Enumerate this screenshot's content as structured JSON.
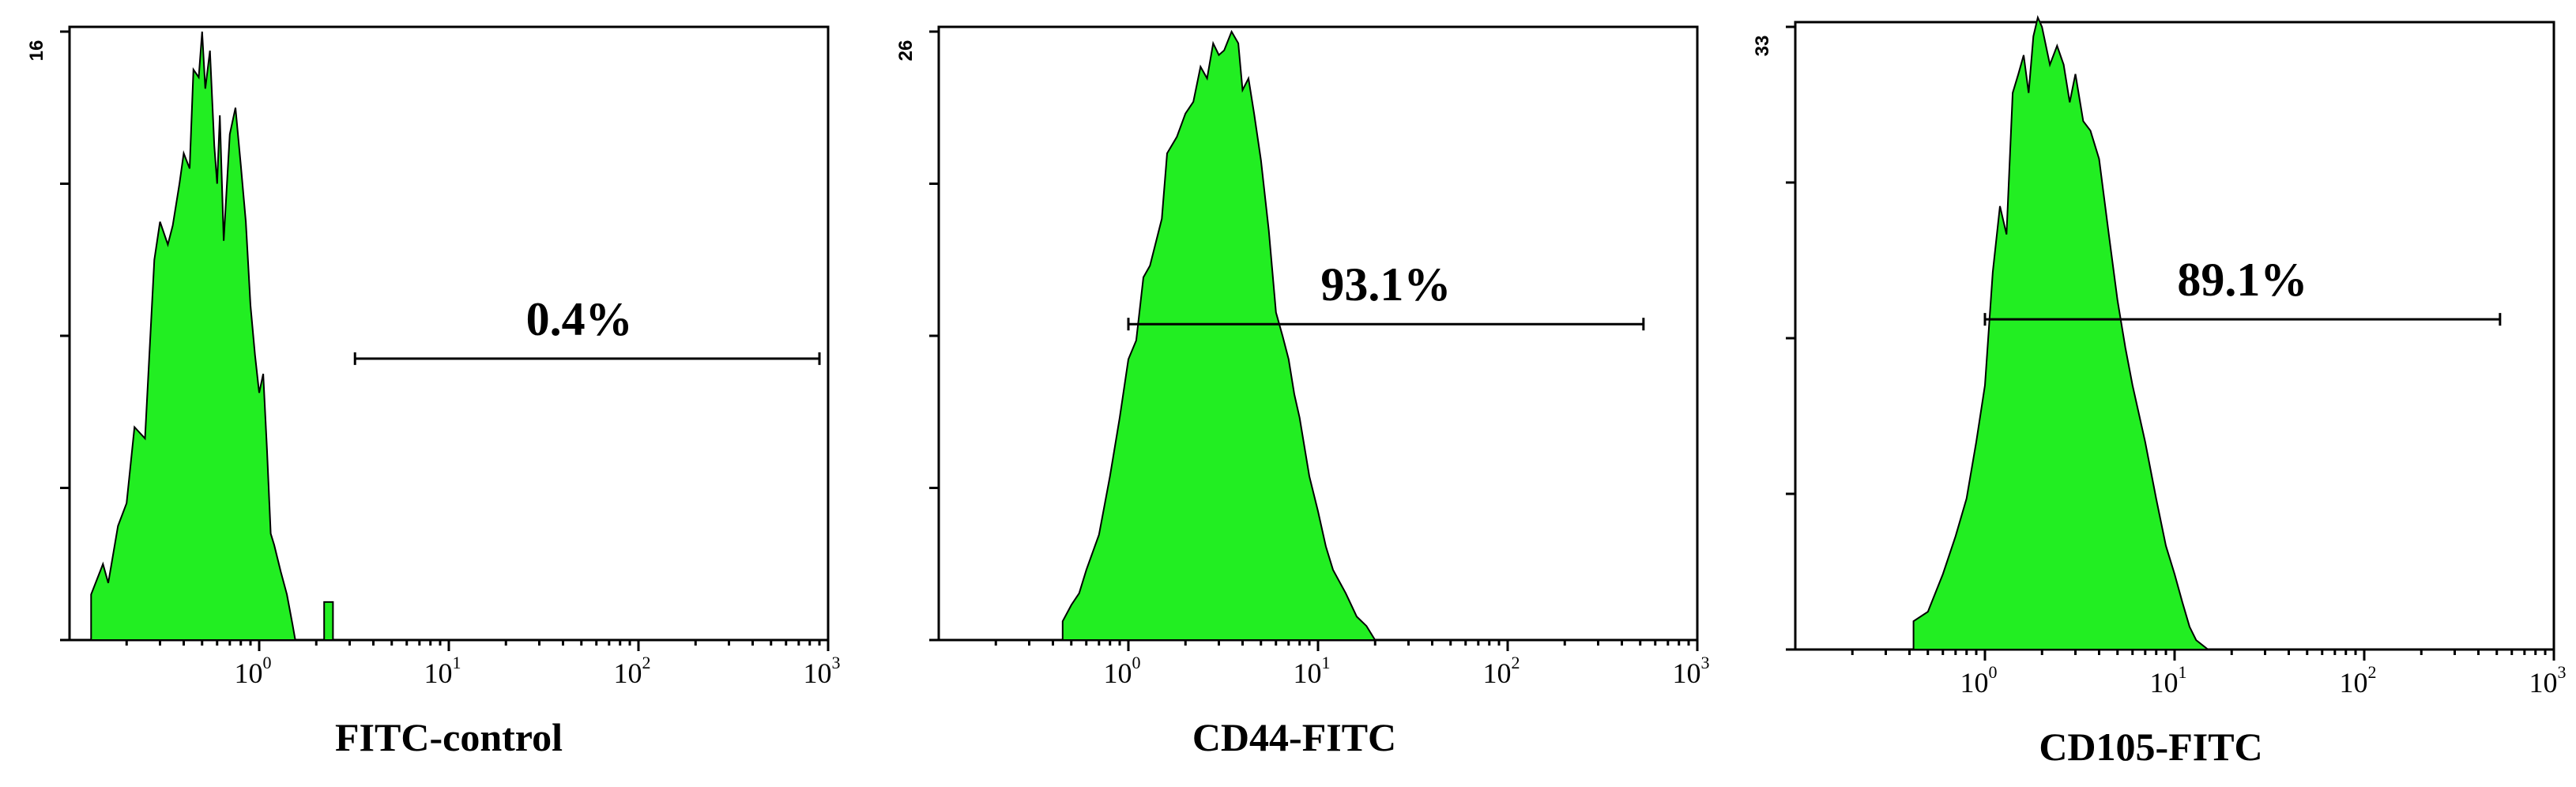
{
  "chart_data": [
    {
      "type": "area",
      "xlabel": "FITC-control",
      "xscale": "log",
      "xlim": [
        0.1,
        1000
      ],
      "xticks": [
        {
          "value": 1,
          "base": "10",
          "exp": "0"
        },
        {
          "value": 10,
          "base": "10",
          "exp": "1"
        },
        {
          "value": 100,
          "base": "10",
          "exp": "2"
        },
        {
          "value": 1000,
          "base": "10",
          "exp": "3"
        }
      ],
      "ylim": [
        0,
        16
      ],
      "ymax_label": "16",
      "gate": {
        "label": "0.4%",
        "range": [
          3.2,
          900
        ],
        "y": 7.4
      },
      "series": [
        {
          "values": [
            [
              0.13,
              0
            ],
            [
              0.13,
              1.2
            ],
            [
              0.15,
              2.0
            ],
            [
              0.16,
              1.5
            ],
            [
              0.18,
              3.0
            ],
            [
              0.2,
              3.6
            ],
            [
              0.22,
              5.6
            ],
            [
              0.25,
              5.3
            ],
            [
              0.28,
              10.0
            ],
            [
              0.3,
              11.0
            ],
            [
              0.33,
              10.4
            ],
            [
              0.35,
              10.9
            ],
            [
              0.38,
              12.0
            ],
            [
              0.4,
              12.8
            ],
            [
              0.43,
              12.4
            ],
            [
              0.45,
              15.0
            ],
            [
              0.48,
              14.8
            ],
            [
              0.5,
              16.0
            ],
            [
              0.52,
              14.5
            ],
            [
              0.55,
              15.5
            ],
            [
              0.58,
              13.0
            ],
            [
              0.6,
              12.0
            ],
            [
              0.62,
              13.8
            ],
            [
              0.65,
              10.5
            ],
            [
              0.7,
              13.3
            ],
            [
              0.75,
              14.0
            ],
            [
              0.8,
              12.5
            ],
            [
              0.85,
              11.0
            ],
            [
              0.9,
              8.8
            ],
            [
              0.95,
              7.5
            ],
            [
              1.0,
              6.5
            ],
            [
              1.05,
              7.0
            ],
            [
              1.1,
              5.0
            ],
            [
              1.15,
              2.8
            ],
            [
              1.2,
              2.5
            ],
            [
              1.3,
              1.8
            ],
            [
              1.4,
              1.2
            ],
            [
              1.5,
              0.4
            ],
            [
              1.55,
              0
            ],
            [
              2.2,
              0
            ],
            [
              2.2,
              1.0
            ],
            [
              2.45,
              1.0
            ],
            [
              2.45,
              0
            ]
          ]
        }
      ]
    },
    {
      "type": "area",
      "xlabel": "CD44-FITC",
      "xscale": "log",
      "xlim": [
        0.1,
        1000
      ],
      "xticks": [
        {
          "value": 1,
          "base": "10",
          "exp": "0"
        },
        {
          "value": 10,
          "base": "10",
          "exp": "1"
        },
        {
          "value": 100,
          "base": "10",
          "exp": "2"
        },
        {
          "value": 1000,
          "base": "10",
          "exp": "3"
        }
      ],
      "ylim": [
        0,
        26
      ],
      "ymax_label": "26",
      "gate": {
        "label": "93.1%",
        "range": [
          1.0,
          520
        ],
        "y": 13.5
      },
      "series": [
        {
          "values": [
            [
              0.45,
              0
            ],
            [
              0.45,
              0.8
            ],
            [
              0.5,
              1.5
            ],
            [
              0.55,
              2.0
            ],
            [
              0.6,
              3.0
            ],
            [
              0.7,
              4.5
            ],
            [
              0.8,
              7.0
            ],
            [
              0.9,
              9.5
            ],
            [
              1.0,
              12.0
            ],
            [
              1.1,
              12.8
            ],
            [
              1.2,
              15.5
            ],
            [
              1.3,
              16.0
            ],
            [
              1.5,
              18.0
            ],
            [
              1.6,
              20.8
            ],
            [
              1.8,
              21.5
            ],
            [
              2.0,
              22.5
            ],
            [
              2.2,
              23.0
            ],
            [
              2.4,
              24.5
            ],
            [
              2.6,
              24.0
            ],
            [
              2.8,
              25.5
            ],
            [
              3.0,
              25.0
            ],
            [
              3.2,
              25.2
            ],
            [
              3.5,
              26.0
            ],
            [
              3.8,
              25.5
            ],
            [
              4.0,
              23.5
            ],
            [
              4.3,
              24.0
            ],
            [
              4.6,
              22.5
            ],
            [
              5.0,
              20.5
            ],
            [
              5.5,
              17.5
            ],
            [
              6.0,
              14.0
            ],
            [
              6.5,
              13.0
            ],
            [
              7.0,
              12.0
            ],
            [
              7.5,
              10.5
            ],
            [
              8.0,
              9.5
            ],
            [
              9.0,
              7.0
            ],
            [
              10.0,
              5.5
            ],
            [
              11.0,
              4.0
            ],
            [
              12.0,
              3.0
            ],
            [
              14.0,
              2.0
            ],
            [
              16.0,
              1.0
            ],
            [
              18.0,
              0.6
            ],
            [
              20.0,
              0
            ]
          ]
        }
      ]
    },
    {
      "type": "area",
      "xlabel": "CD105-FITC",
      "xscale": "log",
      "xlim": [
        0.1,
        1000
      ],
      "xticks": [
        {
          "value": 1,
          "base": "10",
          "exp": "0"
        },
        {
          "value": 10,
          "base": "10",
          "exp": "1"
        },
        {
          "value": 100,
          "base": "10",
          "exp": "2"
        },
        {
          "value": 1000,
          "base": "10",
          "exp": "3"
        }
      ],
      "ylim": [
        0,
        33
      ],
      "ymax_label": "33",
      "gate": {
        "label": "89.1%",
        "range": [
          1.0,
          520
        ],
        "y": 17.5
      },
      "series": [
        {
          "values": [
            [
              0.42,
              0
            ],
            [
              0.42,
              1.5
            ],
            [
              0.5,
              2.0
            ],
            [
              0.6,
              4.0
            ],
            [
              0.7,
              6.0
            ],
            [
              0.8,
              8.0
            ],
            [
              0.9,
              11.0
            ],
            [
              1.0,
              14.0
            ],
            [
              1.1,
              20.0
            ],
            [
              1.2,
              23.5
            ],
            [
              1.3,
              22.0
            ],
            [
              1.4,
              29.5
            ],
            [
              1.5,
              30.5
            ],
            [
              1.6,
              31.5
            ],
            [
              1.7,
              29.5
            ],
            [
              1.8,
              32.5
            ],
            [
              1.9,
              33.5
            ],
            [
              2.0,
              33.0
            ],
            [
              2.2,
              31.0
            ],
            [
              2.4,
              32.0
            ],
            [
              2.6,
              31.0
            ],
            [
              2.8,
              29.0
            ],
            [
              3.0,
              30.5
            ],
            [
              3.3,
              28.0
            ],
            [
              3.6,
              27.5
            ],
            [
              4.0,
              26.0
            ],
            [
              4.5,
              22.0
            ],
            [
              5.0,
              18.5
            ],
            [
              5.5,
              16.0
            ],
            [
              6.0,
              14.0
            ],
            [
              7.0,
              11.0
            ],
            [
              8.0,
              8.0
            ],
            [
              9.0,
              5.5
            ],
            [
              10.0,
              4.0
            ],
            [
              11.0,
              2.5
            ],
            [
              12.0,
              1.2
            ],
            [
              13.0,
              0.5
            ],
            [
              15.0,
              0
            ]
          ]
        }
      ]
    }
  ]
}
